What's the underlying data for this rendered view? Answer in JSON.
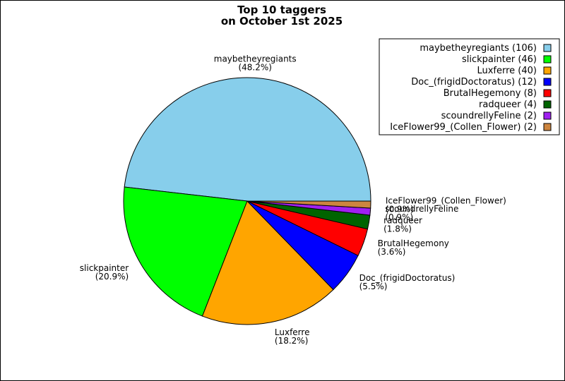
{
  "chart_data": {
    "type": "pie",
    "title_line1": "Top 10 taggers",
    "title_line2": "on October 1st 2025",
    "legend_position": "top-right",
    "slices": [
      {
        "name": "maybetheyregiants",
        "value": 106,
        "percent_label": "(48.2%)",
        "legend_label": "maybetheyregiants (106)",
        "color": "#87ceeb"
      },
      {
        "name": "slickpainter",
        "value": 46,
        "percent_label": "(20.9%)",
        "legend_label": "slickpainter (46)",
        "color": "#00ff00"
      },
      {
        "name": "Luxferre",
        "value": 40,
        "percent_label": "(18.2%)",
        "legend_label": "Luxferre (40)",
        "color": "#ffa500"
      },
      {
        "name": "Doc_(frigidDoctoratus)",
        "value": 12,
        "percent_label": "(5.5%)",
        "legend_label": "Doc_(frigidDoctoratus) (12)",
        "color": "#0000ff"
      },
      {
        "name": "BrutalHegemony",
        "value": 8,
        "percent_label": "(3.6%)",
        "legend_label": "BrutalHegemony (8)",
        "color": "#ff0000"
      },
      {
        "name": "radqueer",
        "value": 4,
        "percent_label": "(1.8%)",
        "legend_label": "radqueer (4)",
        "color": "#006400"
      },
      {
        "name": "scoundrellyFeline",
        "value": 2,
        "percent_label": "(0.9%)",
        "legend_label": "scoundrellyFeline (2)",
        "color": "#a020f0"
      },
      {
        "name": "IceFlower99_(Collen_Flower)",
        "value": 2,
        "percent_label": "(0.9%)",
        "legend_label": "IceFlower99_(Collen_Flower) (2)",
        "color": "#cd853f"
      }
    ]
  }
}
